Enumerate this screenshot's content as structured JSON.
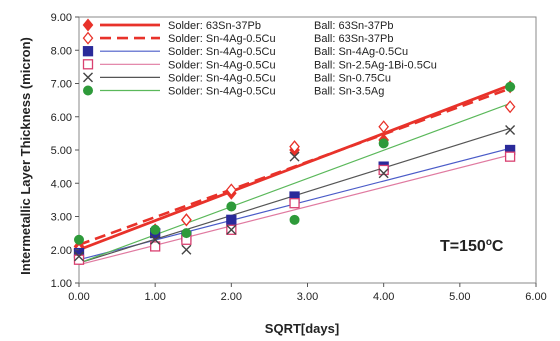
{
  "chart_data": {
    "type": "scatter",
    "xlabel": "SQRT[days]",
    "ylabel": "Intermetallic Layer Thickness (micron)",
    "xlim": [
      0,
      6
    ],
    "ylim": [
      1,
      9
    ],
    "x_ticks": [
      "0.00",
      "1.00",
      "2.00",
      "3.00",
      "4.00",
      "5.00",
      "6.00"
    ],
    "y_ticks": [
      "1.00",
      "2.00",
      "3.00",
      "4.00",
      "5.00",
      "6.00",
      "7.00",
      "8.00",
      "9.00"
    ],
    "annotation": "T=150",
    "annotation_sup": "o",
    "annotation_unit": "C",
    "legend_position": "top-left",
    "series": [
      {
        "name": "Solder: 63Sn-37Pb",
        "ball": "Ball: 63Sn-37Pb",
        "marker": "diamond-filled",
        "line": "solid-thick",
        "color": "#e8322a",
        "x": [
          0.0,
          1.0,
          1.41,
          2.0,
          2.83,
          4.0,
          5.66
        ],
        "values": [
          2.1,
          2.6,
          2.9,
          3.7,
          5.0,
          5.3,
          6.9
        ],
        "fit": [
          2.0,
          6.95
        ]
      },
      {
        "name": "Solder: Sn-4Ag-0.5Cu",
        "ball": "Ball: 63Sn-37Pb",
        "marker": "diamond-open",
        "line": "dashed-thick",
        "color": "#e8322a",
        "x": [
          0.0,
          1.0,
          1.41,
          2.0,
          2.83,
          4.0,
          5.66
        ],
        "values": [
          2.0,
          2.5,
          2.9,
          3.8,
          5.1,
          5.7,
          6.3
        ],
        "fit": [
          2.15,
          6.85
        ]
      },
      {
        "name": "Solder: Sn-4Ag-0.5Cu",
        "ball": "Ball: Sn-4Ag-0.5Cu",
        "marker": "square-filled",
        "line": "solid",
        "color": "#2a2a9a",
        "linecolor": "#4a5bc8",
        "x": [
          0.0,
          1.0,
          1.41,
          2.0,
          2.83,
          4.0,
          5.66
        ],
        "values": [
          1.9,
          2.5,
          2.4,
          2.9,
          3.6,
          4.5,
          5.0
        ],
        "fit": [
          1.7,
          5.05
        ]
      },
      {
        "name": "Solder: Sn-4Ag-0.5Cu",
        "ball": "Ball: Sn-2.5Ag-1Bi-0.5Cu",
        "marker": "square-open",
        "line": "solid",
        "color": "#d94070",
        "linecolor": "#e07aa0",
        "x": [
          0.0,
          1.0,
          1.41,
          2.0,
          2.83,
          4.0,
          5.66
        ],
        "values": [
          1.7,
          2.1,
          2.3,
          2.6,
          3.4,
          4.4,
          4.8
        ],
        "fit": [
          1.55,
          4.85
        ]
      },
      {
        "name": "Solder: Sn-4Ag-0.5Cu",
        "ball": "Ball: Sn-0.75Cu",
        "marker": "x",
        "line": "solid",
        "color": "#444444",
        "linecolor": "#555555",
        "x": [
          0.0,
          1.0,
          1.41,
          2.0,
          2.83,
          4.0,
          5.66
        ],
        "values": [
          1.8,
          2.3,
          2.0,
          2.6,
          4.8,
          4.3,
          5.6
        ],
        "fit": [
          1.6,
          5.65
        ]
      },
      {
        "name": "Solder: Sn-4Ag-0.5Cu",
        "ball": "Ball: Sn-3.5Ag",
        "marker": "circle-filled",
        "line": "solid",
        "color": "#2e9a3a",
        "linecolor": "#5ab85a",
        "x": [
          0.0,
          1.0,
          1.41,
          2.0,
          2.83,
          4.0,
          5.66
        ],
        "values": [
          2.3,
          2.6,
          2.5,
          3.3,
          2.9,
          5.2,
          6.9
        ],
        "fit": [
          1.6,
          6.4
        ]
      }
    ]
  }
}
